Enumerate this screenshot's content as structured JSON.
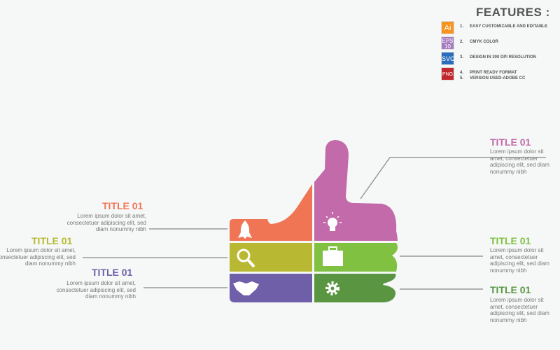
{
  "features": {
    "title": "FEATURES :",
    "items": [
      {
        "badge": "Ai",
        "color": "#f7931e",
        "num": "1.",
        "text": "EASY CUSTOMIZABLE AND EDITABLE"
      },
      {
        "badge": "EPS 10",
        "color": "#a67cc0",
        "num": "2.",
        "text": "CMYK COLOR"
      },
      {
        "badge": "SVG",
        "color": "#2a6ebb",
        "num": "3.",
        "text": "DESIGN IN 300 DPI RESOLUTION"
      },
      {
        "badge": "PNG",
        "color": "#c1272d",
        "num": "4.",
        "text": "PRINT READY FORMAT"
      },
      {
        "badge": "",
        "color": "",
        "num": "5.",
        "text": "VERSION USED-ADOBE CC"
      }
    ]
  },
  "blocks": [
    {
      "title": "TITLE 01",
      "color": "#ef7555",
      "icon": "rocket-icon",
      "text": "Lorem ipsum dolor sit amet, consectetuer adipiscing elit, sed diam nonummy nibh"
    },
    {
      "title": "TITLE 01",
      "color": "#b8b832",
      "icon": "magnifier-icon",
      "text": "Lorem ipsum dolor sit amet, consectetuer adipiscing elit, sed diam nonummy nibh"
    },
    {
      "title": "TITLE 01",
      "color": "#6f5ea8",
      "icon": "handshake-icon",
      "text": "Lorem ipsum dolor sit amet, consectetuer adipiscing elit, sed diam nonummy nibh"
    },
    {
      "title": "TITLE 01",
      "color": "#c26aaa",
      "icon": "lightbulb-icon",
      "text": "Lorem ipsum dolor sit amet, consectetuer adipiscing elit, sed diam nonummy nibh"
    },
    {
      "title": "TITLE 01",
      "color": "#80c141",
      "icon": "briefcase-icon",
      "text": "Lorem ipsum dolor sit amet, consectetuer adipiscing elit, sed diam nonummy nibh"
    },
    {
      "title": "TITLE 01",
      "color": "#5a9642",
      "icon": "gear-icon",
      "text": "Lorem ipsum dolor sit amet, consectetuer adipiscing elit, sed diam nonummy nibh"
    }
  ]
}
